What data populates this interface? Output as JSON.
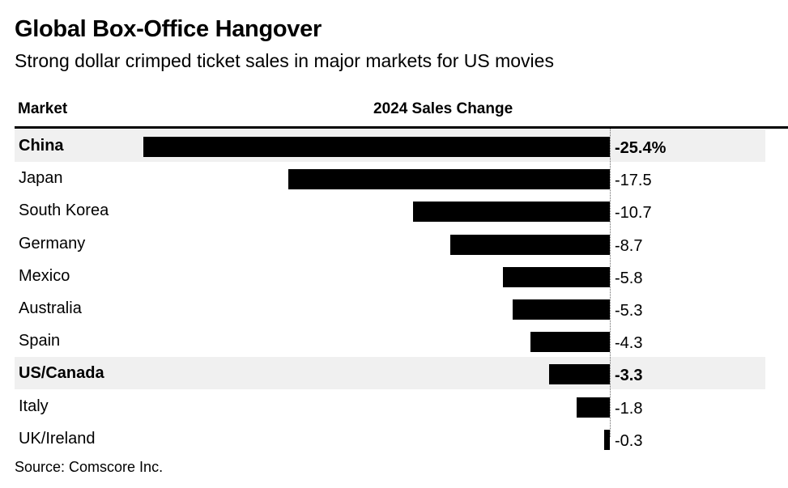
{
  "header": {
    "title": "Global Box-Office Hangover",
    "subtitle": "Strong dollar crimped ticket sales in major markets for US movies"
  },
  "table": {
    "market_header": "Market",
    "change_header": "2024 Sales Change"
  },
  "footer": {
    "source": "Source: Comscore Inc."
  },
  "chart_data": {
    "type": "bar",
    "orientation": "horizontal",
    "categories": [
      "China",
      "Japan",
      "South Korea",
      "Germany",
      "Mexico",
      "Australia",
      "Spain",
      "US/Canada",
      "Italy",
      "UK/Ireland"
    ],
    "values": [
      -25.4,
      -17.5,
      -10.7,
      -8.7,
      -5.8,
      -5.3,
      -4.3,
      -3.3,
      -1.8,
      -0.3
    ],
    "value_labels": [
      "-25.4%",
      "-17.5",
      "-10.7",
      "-8.7",
      "-5.8",
      "-5.3",
      "-4.3",
      "-3.3",
      "-1.8",
      "-0.3"
    ],
    "highlighted": [
      "China",
      "US/Canada"
    ],
    "xlim": [
      -25.4,
      0
    ],
    "bar_color": "#000000",
    "highlight_row_color": "#f0f0f0",
    "grid": false,
    "legend": "none"
  }
}
